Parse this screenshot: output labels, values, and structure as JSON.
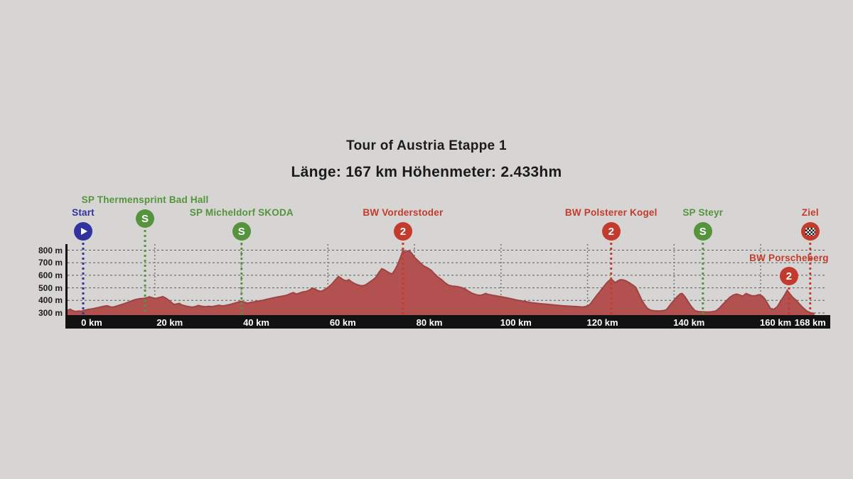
{
  "header": {
    "title": "Tour of Austria Etappe 1",
    "subtitle": "Länge: 167 km Höhenmeter: 2.433hm"
  },
  "colors": {
    "background": "#d6d5d3",
    "heading_text": "#1b1b1b",
    "profile_fill": "#b25150",
    "profile_stroke": "#9e4543",
    "axis_bar": "#121212",
    "axis_line": "#111111",
    "x_tick_text": "#ffffff",
    "y_tick_text": "#1c1c1c",
    "grid_horizontal": "#5f5d5b",
    "grid_vertical": "#787674",
    "sprint_green": "#55933c",
    "climb_red": "#c23b2c",
    "start_blue": "#32329e",
    "finish_red": "#c23b2c"
  },
  "chart_data": {
    "type": "area",
    "title": "Tour of Austria Etappe 1",
    "subtitle": "Länge: 167 km Höhenmeter: 2.433hm",
    "xlabel": "km",
    "ylabel": "m",
    "xlim_km": [
      -4.2,
      172.5
    ],
    "ylim_m": [
      277,
      848
    ],
    "grid": true,
    "x_ticks": [
      {
        "km": 0,
        "label": "0 km"
      },
      {
        "km": 20,
        "label": "20 km"
      },
      {
        "km": 40,
        "label": "40 km"
      },
      {
        "km": 60,
        "label": "60 km"
      },
      {
        "km": 80,
        "label": "80 km"
      },
      {
        "km": 100,
        "label": "100 km"
      },
      {
        "km": 120,
        "label": "120 km"
      },
      {
        "km": 140,
        "label": "140 km"
      },
      {
        "km": 160,
        "label": "160 km"
      },
      {
        "km": 168,
        "label": "168 km"
      }
    ],
    "y_ticks": [
      {
        "m": 300,
        "label": "300 m"
      },
      {
        "m": 400,
        "label": "400 m"
      },
      {
        "m": 500,
        "label": "500 m"
      },
      {
        "m": 600,
        "label": "600 m"
      },
      {
        "m": 700,
        "label": "700 m"
      },
      {
        "m": 800,
        "label": "800 m"
      }
    ],
    "markers": [
      {
        "id": "start",
        "label": "Start",
        "type": "start",
        "km": 0,
        "icon": "play",
        "row": "mid"
      },
      {
        "id": "thermensprint",
        "label": "SP Thermensprint Bad Hall",
        "type": "sprint",
        "km": 14.3,
        "icon": "S",
        "row": "high"
      },
      {
        "id": "micheldorf",
        "label": "SP Micheldorf SKODA",
        "type": "sprint",
        "km": 36.6,
        "icon": "S",
        "row": "mid"
      },
      {
        "id": "vorderstoder",
        "label": "BW Vorderstoder",
        "type": "climb",
        "km": 73.9,
        "icon": "2",
        "row": "mid"
      },
      {
        "id": "polsterer",
        "label": "BW Polsterer Kogel",
        "type": "climb",
        "km": 122,
        "icon": "2",
        "row": "mid"
      },
      {
        "id": "steyr",
        "label": "SP Steyr",
        "type": "sprint",
        "km": 143.2,
        "icon": "S",
        "row": "mid"
      },
      {
        "id": "porscheberg",
        "label": "BW Porscheberg",
        "type": "climb",
        "km": 163.1,
        "icon": "2",
        "row": "low"
      },
      {
        "id": "ziel",
        "label": "Ziel",
        "type": "finish",
        "km": 168,
        "icon": "checkered-flag",
        "row": "mid"
      }
    ],
    "series": [
      {
        "name": "elevation_profile",
        "unit": [
          "km",
          "m"
        ],
        "points": [
          [
            -4,
            316
          ],
          [
            -3.4,
            324
          ],
          [
            -3,
            330
          ],
          [
            -2.6,
            322
          ],
          [
            -2.2,
            315
          ],
          [
            -1.6,
            312
          ],
          [
            -1,
            316
          ],
          [
            -0.5,
            313
          ],
          [
            0,
            318
          ],
          [
            0.6,
            324
          ],
          [
            1.2,
            328
          ],
          [
            2,
            332
          ],
          [
            2.8,
            338
          ],
          [
            3.6,
            344
          ],
          [
            4.4,
            350
          ],
          [
            5,
            354
          ],
          [
            5.6,
            357
          ],
          [
            6.2,
            349
          ],
          [
            6.8,
            346
          ],
          [
            7.4,
            352
          ],
          [
            8.2,
            360
          ],
          [
            9,
            368
          ],
          [
            10,
            380
          ],
          [
            11,
            394
          ],
          [
            12,
            406
          ],
          [
            13,
            413
          ],
          [
            14,
            416
          ],
          [
            14.6,
            420
          ],
          [
            15.3,
            428
          ],
          [
            16,
            422
          ],
          [
            16.6,
            414
          ],
          [
            17.2,
            419
          ],
          [
            18,
            426
          ],
          [
            18.4,
            430
          ],
          [
            19,
            420
          ],
          [
            19.6,
            406
          ],
          [
            20.4,
            384
          ],
          [
            21,
            368
          ],
          [
            21.6,
            372
          ],
          [
            22.2,
            376
          ],
          [
            22.8,
            364
          ],
          [
            23.6,
            356
          ],
          [
            24.4,
            350
          ],
          [
            25.2,
            346
          ],
          [
            26,
            352
          ],
          [
            26.6,
            360
          ],
          [
            27.4,
            353
          ],
          [
            28.2,
            349
          ],
          [
            29,
            353
          ],
          [
            29.8,
            350
          ],
          [
            30.6,
            356
          ],
          [
            31.4,
            361
          ],
          [
            32.2,
            356
          ],
          [
            33,
            360
          ],
          [
            34,
            368
          ],
          [
            35,
            378
          ],
          [
            36,
            388
          ],
          [
            36.6,
            392
          ],
          [
            37.4,
            384
          ],
          [
            38,
            378
          ],
          [
            38.8,
            384
          ],
          [
            39.6,
            389
          ],
          [
            40.4,
            394
          ],
          [
            41.4,
            400
          ],
          [
            42.4,
            408
          ],
          [
            43.4,
            416
          ],
          [
            44.4,
            424
          ],
          [
            45.4,
            430
          ],
          [
            46.4,
            436
          ],
          [
            47.2,
            443
          ],
          [
            48,
            456
          ],
          [
            48.6,
            462
          ],
          [
            49.2,
            450
          ],
          [
            50,
            458
          ],
          [
            50.8,
            468
          ],
          [
            51.6,
            472
          ],
          [
            52.4,
            484
          ],
          [
            53,
            498
          ],
          [
            53.6,
            490
          ],
          [
            54.2,
            478
          ],
          [
            55,
            472
          ],
          [
            55.8,
            486
          ],
          [
            56.6,
            504
          ],
          [
            57.4,
            528
          ],
          [
            58.2,
            560
          ],
          [
            59,
            590
          ],
          [
            59.6,
            576
          ],
          [
            60.2,
            562
          ],
          [
            60.8,
            556
          ],
          [
            61.4,
            564
          ],
          [
            62,
            548
          ],
          [
            62.8,
            532
          ],
          [
            63.6,
            522
          ],
          [
            64.4,
            516
          ],
          [
            65.2,
            522
          ],
          [
            66,
            540
          ],
          [
            66.8,
            560
          ],
          [
            67.6,
            582
          ],
          [
            68.4,
            625
          ],
          [
            69,
            652
          ],
          [
            69.6,
            644
          ],
          [
            70.2,
            630
          ],
          [
            70.8,
            618
          ],
          [
            71.4,
            610
          ],
          [
            72,
            640
          ],
          [
            72.6,
            680
          ],
          [
            73.2,
            730
          ],
          [
            73.9,
            798
          ],
          [
            74.4,
            786
          ],
          [
            75,
            792
          ],
          [
            75.4,
            795
          ],
          [
            76,
            770
          ],
          [
            76.6,
            742
          ],
          [
            77.2,
            722
          ],
          [
            78,
            695
          ],
          [
            78.8,
            672
          ],
          [
            79.6,
            658
          ],
          [
            80.4,
            640
          ],
          [
            81.2,
            612
          ],
          [
            82,
            585
          ],
          [
            82.8,
            566
          ],
          [
            83.6,
            540
          ],
          [
            84.4,
            522
          ],
          [
            85.2,
            514
          ],
          [
            86,
            512
          ],
          [
            86.8,
            508
          ],
          [
            87.6,
            500
          ],
          [
            88.4,
            488
          ],
          [
            89.2,
            470
          ],
          [
            90,
            455
          ],
          [
            90.8,
            446
          ],
          [
            91.6,
            440
          ],
          [
            92.4,
            446
          ],
          [
            93,
            455
          ],
          [
            93.6,
            448
          ],
          [
            94.4,
            442
          ],
          [
            95.4,
            436
          ],
          [
            96.4,
            430
          ],
          [
            97.6,
            422
          ],
          [
            98.8,
            414
          ],
          [
            100,
            404
          ],
          [
            101.2,
            396
          ],
          [
            102.4,
            390
          ],
          [
            103.6,
            382
          ],
          [
            104.8,
            377
          ],
          [
            106,
            373
          ],
          [
            107.2,
            369
          ],
          [
            108.4,
            365
          ],
          [
            109.6,
            361
          ],
          [
            110.8,
            357
          ],
          [
            112,
            354
          ],
          [
            113.2,
            352
          ],
          [
            114.4,
            350
          ],
          [
            115.4,
            347
          ],
          [
            116.2,
            352
          ],
          [
            117,
            364
          ],
          [
            117.8,
            400
          ],
          [
            118.6,
            436
          ],
          [
            119.4,
            470
          ],
          [
            120.2,
            506
          ],
          [
            121,
            540
          ],
          [
            121.6,
            560
          ],
          [
            122,
            570
          ],
          [
            122.5,
            555
          ],
          [
            122.9,
            542
          ],
          [
            123.5,
            554
          ],
          [
            124.1,
            564
          ],
          [
            124.7,
            563
          ],
          [
            125.4,
            556
          ],
          [
            126.2,
            540
          ],
          [
            127,
            522
          ],
          [
            127.7,
            504
          ],
          [
            128.4,
            452
          ],
          [
            129,
            408
          ],
          [
            129.7,
            368
          ],
          [
            130.4,
            336
          ],
          [
            131.2,
            321
          ],
          [
            132,
            317
          ],
          [
            133,
            316
          ],
          [
            134,
            318
          ],
          [
            134.8,
            326
          ],
          [
            135.6,
            362
          ],
          [
            136.4,
            396
          ],
          [
            137.2,
            428
          ],
          [
            138,
            452
          ],
          [
            138.4,
            455
          ],
          [
            139,
            432
          ],
          [
            139.8,
            390
          ],
          [
            140.6,
            348
          ],
          [
            141.4,
            318
          ],
          [
            142.2,
            311
          ],
          [
            143.2,
            309
          ],
          [
            144.2,
            307
          ],
          [
            145.2,
            309
          ],
          [
            146.2,
            316
          ],
          [
            147,
            338
          ],
          [
            147.8,
            368
          ],
          [
            148.6,
            396
          ],
          [
            149.4,
            424
          ],
          [
            150.2,
            442
          ],
          [
            151,
            450
          ],
          [
            151.8,
            441
          ],
          [
            152.4,
            434
          ],
          [
            153.2,
            455
          ],
          [
            153.8,
            446
          ],
          [
            154.6,
            436
          ],
          [
            155.4,
            438
          ],
          [
            156.2,
            446
          ],
          [
            157,
            432
          ],
          [
            157.6,
            408
          ],
          [
            158.2,
            372
          ],
          [
            158.8,
            336
          ],
          [
            159.6,
            328
          ],
          [
            160.4,
            350
          ],
          [
            161.2,
            396
          ],
          [
            162,
            438
          ],
          [
            162.7,
            480
          ],
          [
            163.3,
            452
          ],
          [
            164,
            424
          ],
          [
            164.8,
            400
          ],
          [
            165.6,
            368
          ],
          [
            166.4,
            340
          ],
          [
            167.2,
            316
          ],
          [
            168,
            302
          ],
          [
            168.6,
            298
          ],
          [
            169,
            297
          ]
        ]
      }
    ]
  }
}
